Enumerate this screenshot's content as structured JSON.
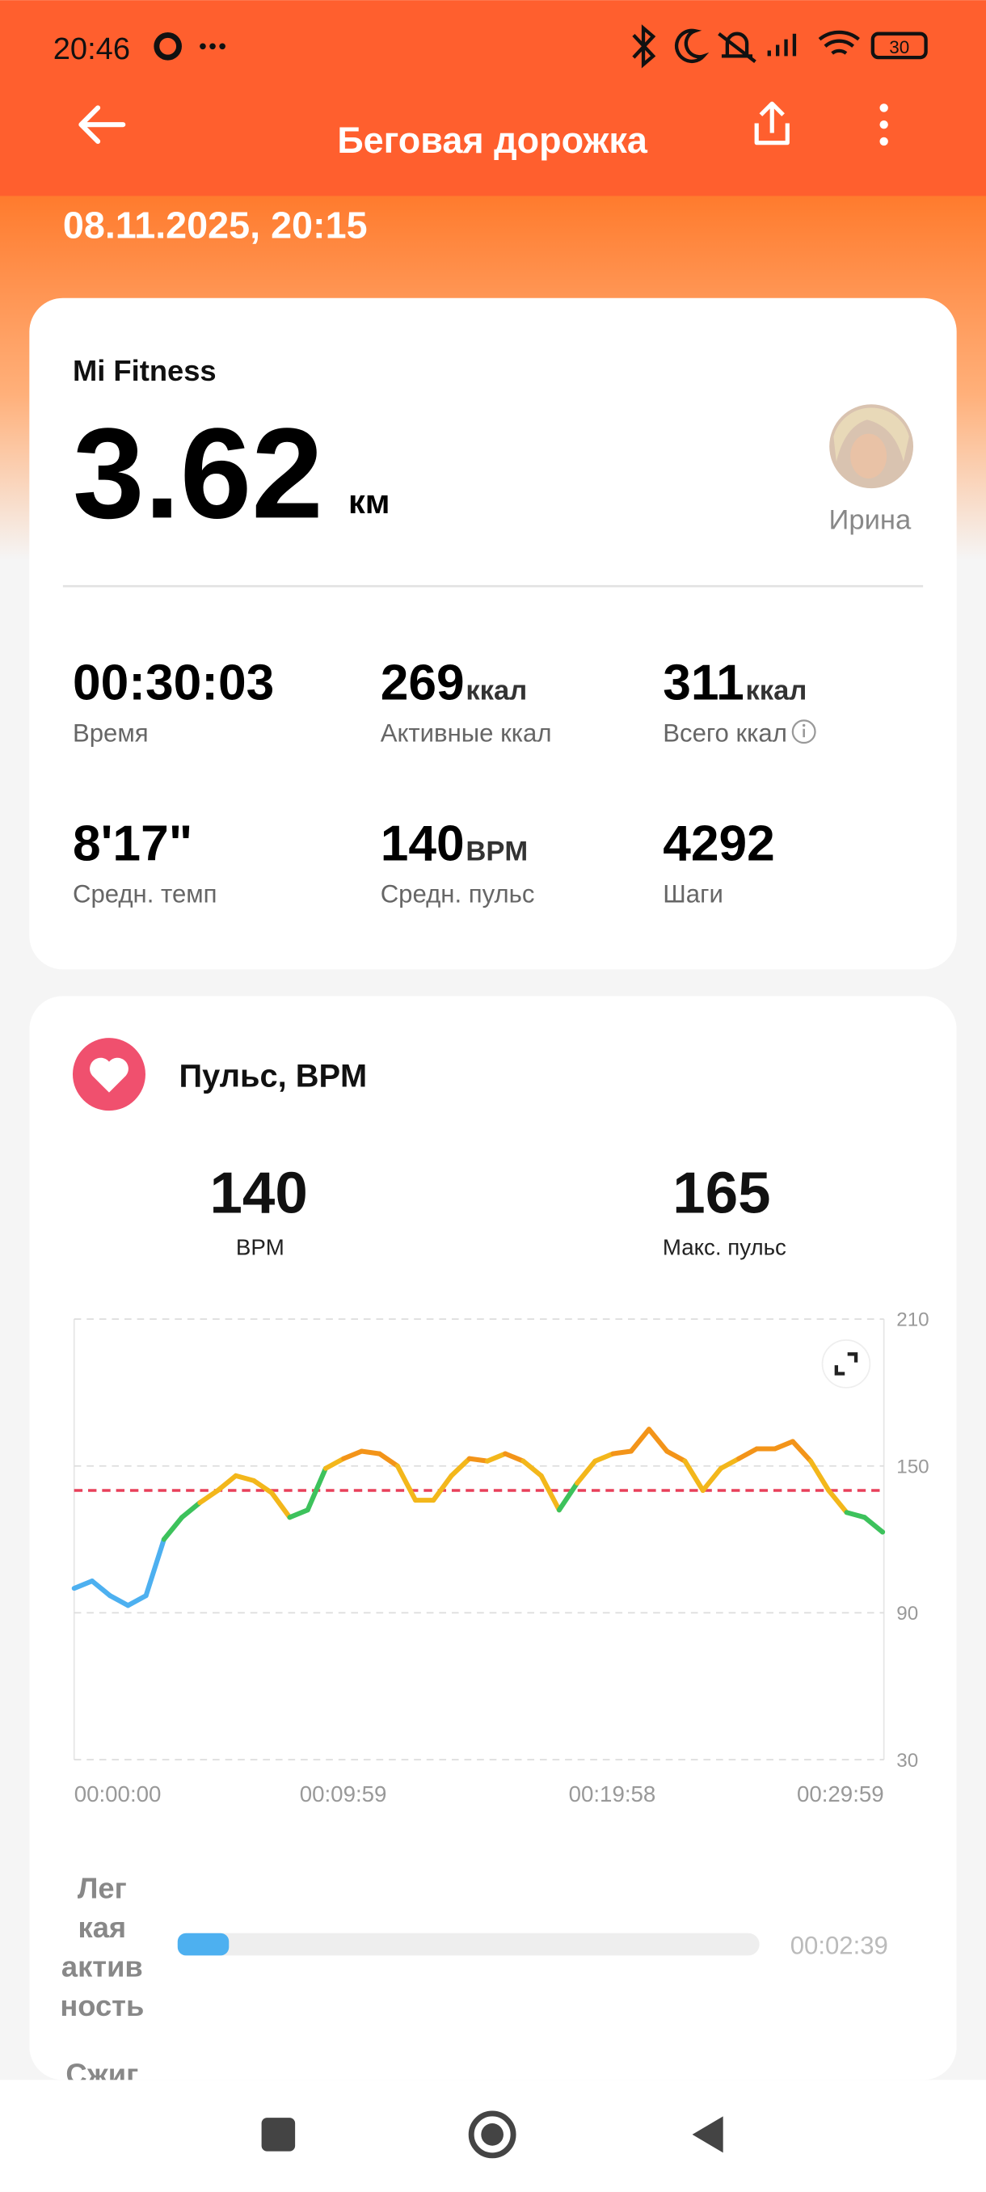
{
  "status_bar": {
    "time": "20:46",
    "battery": "30"
  },
  "header": {
    "title": "Беговая дорожка",
    "date": "08.11.2025, 20:15"
  },
  "summary": {
    "source": "Mi Fitness",
    "distance": "3.62",
    "distance_unit": "км",
    "user": "Ирина"
  },
  "stats": [
    {
      "value": "00:30:03",
      "label": "Время"
    },
    {
      "value": "269",
      "unit": "ккал",
      "label": "Активные ккал"
    },
    {
      "value": "311",
      "unit": "ккал",
      "label": "Всего ккал"
    },
    {
      "value": "8'17\"",
      "label": "Средн. темп"
    },
    {
      "value": "140",
      "unit": "BPM",
      "label": "Средн. пульс"
    },
    {
      "value": "4292",
      "label": "Шаги"
    }
  ],
  "heart_rate": {
    "title": "Пульс, BPM",
    "avg": {
      "value": 140,
      "label": "BPM"
    },
    "max": {
      "value": 165,
      "label": "Макс. пульс"
    }
  },
  "chart_data": {
    "type": "line",
    "x": [
      0,
      40,
      80,
      120,
      160,
      200,
      240,
      280,
      320,
      360,
      400,
      440,
      480,
      520,
      560,
      600,
      640,
      680,
      720,
      760,
      800,
      840,
      880,
      920,
      960,
      1000,
      1040,
      1080,
      1120,
      1160,
      1200,
      1240,
      1280,
      1320,
      1360,
      1400,
      1440,
      1480,
      1520,
      1560,
      1600,
      1640,
      1680,
      1720,
      1760,
      1800
    ],
    "series": [
      {
        "values": [
          100,
          103,
          97,
          93,
          97,
          120,
          129,
          135,
          140,
          146,
          144,
          139,
          129,
          132,
          149,
          153,
          156,
          155,
          150,
          136,
          136,
          146,
          153,
          152,
          155,
          152,
          146,
          132,
          143,
          152,
          155,
          156,
          165,
          156,
          152,
          140,
          149,
          153,
          157,
          157,
          160,
          152,
          140,
          131,
          129,
          123
        ],
        "colors": [
          "#4db0f0",
          "#4db0f0",
          "#4db0f0",
          "#4db0f0",
          "#4db0f0",
          "#3dc25c",
          "#3dc25c",
          "#f3b71b",
          "#f3b71b",
          "#f3b71b",
          "#f3b71b",
          "#f3b71b",
          "#3dc25c",
          "#3dc25c",
          "#f3b71b",
          "#f39419",
          "#f39419",
          "#f39419",
          "#f3b71b",
          "#f3b71b",
          "#f3b71b",
          "#f3b71b",
          "#f39419",
          "#f3b71b",
          "#f39419",
          "#f3b71b",
          "#f3b71b",
          "#3dc25c",
          "#f3b71b",
          "#f3b71b",
          "#f39419",
          "#f39419",
          "#f39419",
          "#f39419",
          "#f3b71b",
          "#f3b71b",
          "#f3b71b",
          "#f39419",
          "#f39419",
          "#f39419",
          "#f39419",
          "#f3b71b",
          "#f3b71b",
          "#3dc25c",
          "#3dc25c",
          "#3dc25c"
        ]
      }
    ],
    "avg_line_color": "#e8405a",
    "xlim": [
      0,
      1803
    ],
    "xticks": [
      {
        "value": 0,
        "label": "00:00:00"
      },
      {
        "value": 599,
        "label": "00:09:59"
      },
      {
        "value": 1198,
        "label": "00:19:58"
      },
      {
        "value": 1799,
        "label": "00:29:59"
      }
    ],
    "ylim": [
      30,
      210
    ],
    "yticks": [
      30,
      90,
      150,
      210
    ],
    "grid": true
  },
  "zones": [
    {
      "label_lines": [
        "Лег",
        "кая",
        "актив",
        "ность"
      ],
      "duration": "00:02:39",
      "color": "#4db0f0"
    },
    {
      "label_lines": [
        "Сжиг"
      ]
    }
  ]
}
